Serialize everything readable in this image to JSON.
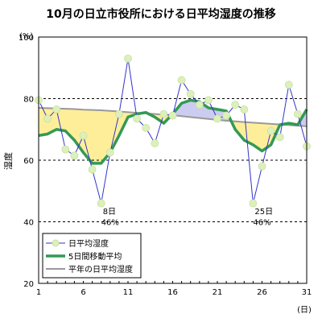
{
  "chart_data": {
    "type": "line",
    "title": "10月の日立市役所における日平均湿度の推移",
    "ylabel": "湿度",
    "y_unit": "(%)",
    "x_unit": "(日)",
    "ylim": [
      20,
      100
    ],
    "xlim": [
      1,
      31
    ],
    "y_ticks": [
      20,
      40,
      60,
      80,
      100
    ],
    "x_ticks": [
      1,
      6,
      11,
      16,
      21,
      26,
      31
    ],
    "dashed_gridlines": [
      40,
      60,
      80
    ],
    "legend_position": "bottom-left",
    "x": [
      1,
      2,
      3,
      4,
      5,
      6,
      7,
      8,
      9,
      10,
      11,
      12,
      13,
      14,
      15,
      16,
      17,
      18,
      19,
      20,
      21,
      22,
      23,
      24,
      25,
      26,
      27,
      28,
      29,
      30,
      31
    ],
    "series": [
      {
        "name": "日平均湿度",
        "style": "line-marker",
        "color": "#3333cc",
        "marker_color": "#ddf0bb",
        "values": [
          79.5,
          73.5,
          76.5,
          63.5,
          61.5,
          68,
          57,
          46,
          62.5,
          75,
          93,
          73.5,
          70.5,
          65.5,
          75,
          74.5,
          86,
          81.5,
          78,
          79.5,
          73.5,
          74.5,
          78,
          76.5,
          46,
          58,
          69.5,
          67.5,
          84.5,
          75,
          64.5
        ]
      },
      {
        "name": "5日間移動平均",
        "style": "thick-line",
        "color": "#339955",
        "values": [
          68,
          68.5,
          70,
          69.5,
          66.5,
          62.5,
          59,
          59,
          62.5,
          68,
          74,
          75,
          75.5,
          74,
          72,
          75,
          78.5,
          79.5,
          79,
          77,
          76.5,
          76,
          70,
          66.5,
          65,
          63,
          65,
          71.5,
          72,
          71.5,
          76.5
        ]
      },
      {
        "name": "平年の日平均湿度",
        "style": "line",
        "color": "#999999",
        "values": [
          77,
          76.9,
          76.8,
          76.7,
          76.6,
          76.4,
          76.3,
          76.2,
          76,
          75.8,
          75.6,
          75.4,
          75.2,
          75,
          74.8,
          74.6,
          74.3,
          74,
          73.7,
          73.4,
          73.1,
          72.8,
          72.6,
          72.4,
          72.2,
          72,
          71.8,
          71.6,
          71.4,
          71.2,
          71
        ]
      }
    ],
    "fill_colors": {
      "below_normal": "#ffee99",
      "above_normal": "#ccccf0"
    },
    "annotations": [
      {
        "day": 8,
        "line1": "8日",
        "line2": "46%"
      },
      {
        "day": 25,
        "line1": "25日",
        "line2": "46%"
      }
    ]
  }
}
